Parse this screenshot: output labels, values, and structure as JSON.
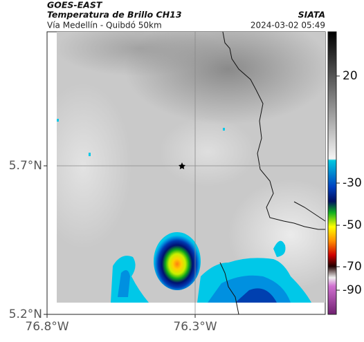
{
  "header": {
    "title": "GOES-EAST",
    "product": "Temperatura de Brillo CH13",
    "location": "Vía Medellín - Quibdó 50km",
    "source": "SIATA",
    "datetime": "2024-03-02 05:49"
  },
  "map": {
    "lon_labels": [
      "76.8°W",
      "76.3°W"
    ],
    "lat_labels": [
      "5.7°N",
      "5.2°N"
    ]
  },
  "colorbar": {
    "labels": [
      "20",
      "-30",
      "-50",
      "-70",
      "-90"
    ]
  }
}
